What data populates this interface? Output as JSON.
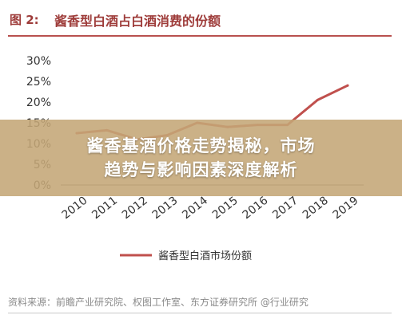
{
  "header": {
    "figure_label": "图 2:",
    "title": "酱香型白酒占白酒消费的份额"
  },
  "banner": {
    "line1": "酱香基酒价格走势揭秘，市场",
    "line2": "趋势与影响因素深度解析"
  },
  "footer": {
    "source": "资料来源：前瞻产业研究院、权图工作室、东方证券研究所 @行业研究"
  },
  "colors": {
    "accent": "#b8504e",
    "line": "#c0504d",
    "banner": "#c4a676"
  },
  "chart_data": {
    "type": "line",
    "categories": [
      "2010",
      "2011",
      "2012",
      "2013",
      "2014",
      "2015",
      "2016",
      "2017",
      "2018",
      "2019"
    ],
    "series": [
      {
        "name": "酱香型白酒市场份额",
        "values": [
          12.5,
          13.2,
          11.0,
          12.0,
          15.0,
          14.0,
          14.5,
          14.5,
          20.5,
          24.0
        ]
      }
    ],
    "ylim": [
      0,
      30
    ],
    "yticks": [
      0,
      5,
      10,
      15,
      20,
      25,
      30
    ],
    "ytick_labels": [
      "0%",
      "5%",
      "10%",
      "15%",
      "20%",
      "25%",
      "30%"
    ],
    "grid": false,
    "legend": "bottom",
    "xlabel": "",
    "ylabel": ""
  }
}
